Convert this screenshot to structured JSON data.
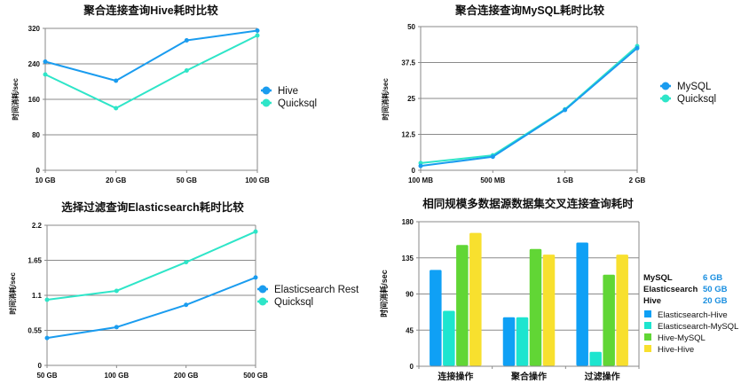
{
  "chart_data": [
    {
      "type": "line",
      "title": "聚合连接查询Hive耗时比较",
      "xlabel": "",
      "ylabel": "时间消耗/sec",
      "categories": [
        "10 GB",
        "20 GB",
        "50 GB",
        "100 GB"
      ],
      "ylim": [
        0,
        320
      ],
      "yticks": [
        "0",
        "80",
        "160",
        "240",
        "320"
      ],
      "ytick_values": [
        0,
        80,
        160,
        240,
        320
      ],
      "grid": true,
      "legend_position": "right",
      "series": [
        {
          "name": "Hive",
          "color": "#1a9cef",
          "values": [
            245,
            202,
            293,
            315
          ]
        },
        {
          "name": "Quicksql",
          "color": "#2ee5c8",
          "values": [
            216,
            140,
            225,
            304
          ]
        }
      ]
    },
    {
      "type": "line",
      "title": "聚合连接查询MySQL耗时比较",
      "xlabel": "",
      "ylabel": "时间消耗/sec",
      "categories": [
        "100 MB",
        "500 MB",
        "1 GB",
        "2 GB"
      ],
      "ylim": [
        0,
        50
      ],
      "yticks": [
        "0",
        "12.5",
        "25",
        "37.5",
        "50"
      ],
      "ytick_values": [
        0,
        12.5,
        25,
        37.5,
        50
      ],
      "grid": true,
      "legend_position": "right",
      "series": [
        {
          "name": "MySQL",
          "color": "#1a9cef",
          "values": [
            1.5,
            4.7,
            21,
            42.5
          ]
        },
        {
          "name": "Quicksql",
          "color": "#2ee5c8",
          "values": [
            2.5,
            5.2,
            21.2,
            43.2
          ]
        }
      ]
    },
    {
      "type": "line",
      "title": "选择过滤查询Elasticsearch耗时比较",
      "xlabel": "",
      "ylabel": "时间消耗/sec",
      "categories": [
        "50 GB",
        "100 GB",
        "200 GB",
        "500 GB"
      ],
      "ylim": [
        0,
        2.2
      ],
      "yticks": [
        "0",
        "0.55",
        "1.1",
        "1.65",
        "2.2"
      ],
      "ytick_values": [
        0,
        0.55,
        1.1,
        1.65,
        2.2
      ],
      "grid": true,
      "legend_position": "right",
      "series": [
        {
          "name": "Elasticsearch Rest",
          "color": "#1a9cef",
          "values": [
            0.43,
            0.6,
            0.95,
            1.38
          ]
        },
        {
          "name": "Quicksql",
          "color": "#2ee5c8",
          "values": [
            1.03,
            1.17,
            1.62,
            2.1
          ]
        }
      ]
    },
    {
      "type": "bar",
      "title": "相同规模多数据源数据集交叉连接查询耗时",
      "xlabel": "",
      "ylabel": "时间消耗/sec",
      "categories": [
        "连接操作",
        "聚合操作",
        "过滤操作"
      ],
      "ylim": [
        0,
        180
      ],
      "yticks": [
        "0",
        "45",
        "90",
        "135",
        "180"
      ],
      "ytick_values": [
        0,
        45,
        90,
        135,
        180
      ],
      "grid": true,
      "legend_position": "right",
      "annotation": [
        {
          "key": "MySQL",
          "value": "6 GB"
        },
        {
          "key": "Elasticsearch",
          "value": "50 GB"
        },
        {
          "key": "Hive",
          "value": "20 GB"
        }
      ],
      "series": [
        {
          "name": "Elasticsearch-Hive",
          "color": "#0fa0f5",
          "values": [
            120,
            61,
            154
          ]
        },
        {
          "name": "Elasticsearch-MySQL",
          "color": "#1de5cf",
          "values": [
            69,
            61,
            18
          ]
        },
        {
          "name": "Hive-MySQL",
          "color": "#61d635",
          "values": [
            151,
            146,
            114
          ]
        },
        {
          "name": "Hive-Hive",
          "color": "#f8e02e",
          "values": [
            166,
            139,
            139
          ]
        }
      ]
    }
  ]
}
